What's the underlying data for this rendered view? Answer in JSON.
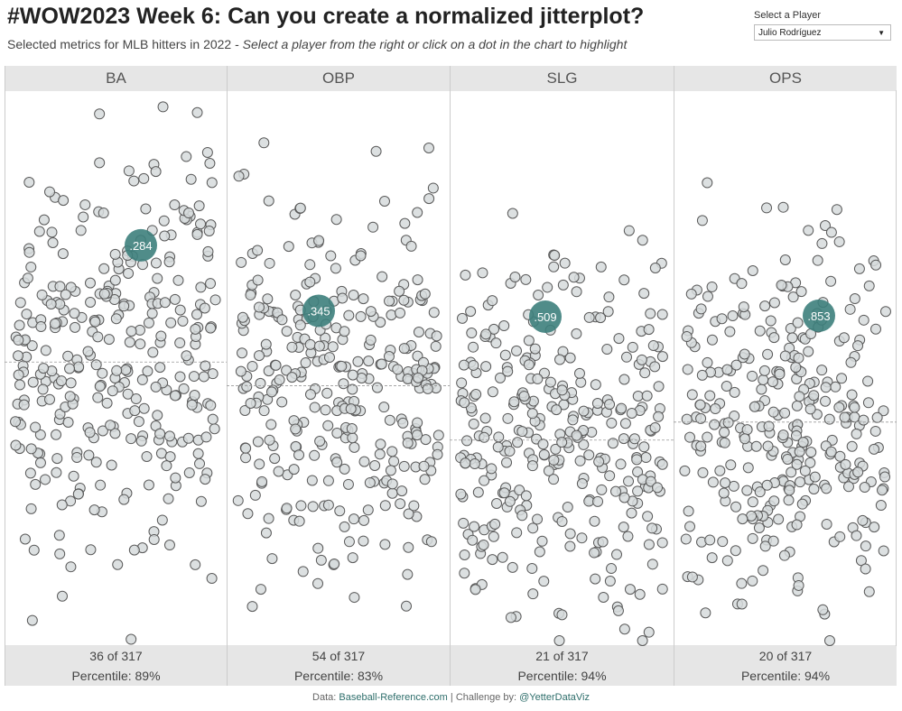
{
  "header": {
    "title": "#WOW2023 Week 6: Can you create a normalized jitterplot?",
    "subtitle_plain": "Selected metrics for MLB hitters in 2022 - ",
    "subtitle_italic": "Select a player from the right or click on a dot in the chart to highlight"
  },
  "filter": {
    "label": "Select a Player",
    "value": "Julio Rodríguez"
  },
  "colors": {
    "highlight": "#3d7f7c",
    "dot_fill": "#d6dadc",
    "dot_stroke": "#5a5a5a",
    "panel_header_bg": "#e6e6e6"
  },
  "chart_data": {
    "type": "scatter",
    "subtype": "jitterplot",
    "total_players": 317,
    "panels": [
      {
        "metric": "BA",
        "highlight_value": 0.284,
        "highlight_label": ".284",
        "average": 0.253,
        "ylim": [
          0.179,
          0.324
        ],
        "rank": "36",
        "of_text": " of 317",
        "percentile_text": "Percentile: 89%"
      },
      {
        "metric": "OBP",
        "highlight_value": 0.345,
        "highlight_label": ".345",
        "average": 0.318,
        "ylim": [
          0.226,
          0.423
        ],
        "rank": "54",
        "of_text": " of 317",
        "percentile_text": "Percentile: 83%"
      },
      {
        "metric": "SLG",
        "highlight_value": 0.509,
        "highlight_label": ".509",
        "average": 0.405,
        "ylim": [
          0.236,
          0.696
        ],
        "rank": "21",
        "of_text": " of 317",
        "percentile_text": "Percentile: 94%"
      },
      {
        "metric": "OPS",
        "highlight_value": 0.853,
        "highlight_label": ".853",
        "average": 0.722,
        "ylim": [
          0.453,
          1.125
        ],
        "rank": "20",
        "of_text": " of 317",
        "percentile_text": "Percentile: 94%"
      }
    ]
  },
  "footer": {
    "data_prefix": "Data: ",
    "data_source": "Baseball-Reference.com",
    "separator": " | ",
    "challenge_prefix": "Challenge by: ",
    "challenge_by": "@YetterDataViz"
  }
}
